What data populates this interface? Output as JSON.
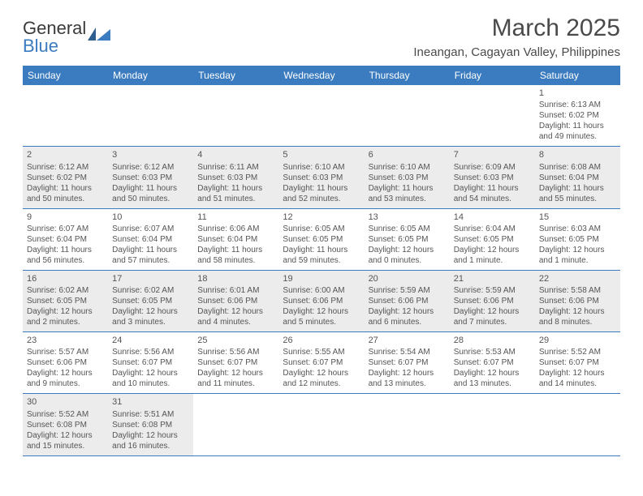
{
  "logo": {
    "part1": "General",
    "part2": "Blue"
  },
  "title": "March 2025",
  "location": "Ineangan, Cagayan Valley, Philippines",
  "colors": {
    "header_bg": "#3b7bbf",
    "header_text": "#ffffff",
    "shaded_bg": "#ececec",
    "text": "#555555",
    "rule": "#3b7bbf"
  },
  "typography": {
    "title_fontsize": 30,
    "location_fontsize": 15,
    "dayheader_fontsize": 12,
    "cell_fontsize": 10
  },
  "day_names": [
    "Sunday",
    "Monday",
    "Tuesday",
    "Wednesday",
    "Thursday",
    "Friday",
    "Saturday"
  ],
  "weeks": [
    [
      {
        "n": "",
        "shaded": false
      },
      {
        "n": "",
        "shaded": false
      },
      {
        "n": "",
        "shaded": false
      },
      {
        "n": "",
        "shaded": false
      },
      {
        "n": "",
        "shaded": false
      },
      {
        "n": "",
        "shaded": false
      },
      {
        "n": "1",
        "shaded": false,
        "sr": "Sunrise: 6:13 AM",
        "ss": "Sunset: 6:02 PM",
        "d1": "Daylight: 11 hours",
        "d2": "and 49 minutes."
      }
    ],
    [
      {
        "n": "2",
        "shaded": true,
        "sr": "Sunrise: 6:12 AM",
        "ss": "Sunset: 6:02 PM",
        "d1": "Daylight: 11 hours",
        "d2": "and 50 minutes."
      },
      {
        "n": "3",
        "shaded": true,
        "sr": "Sunrise: 6:12 AM",
        "ss": "Sunset: 6:03 PM",
        "d1": "Daylight: 11 hours",
        "d2": "and 50 minutes."
      },
      {
        "n": "4",
        "shaded": true,
        "sr": "Sunrise: 6:11 AM",
        "ss": "Sunset: 6:03 PM",
        "d1": "Daylight: 11 hours",
        "d2": "and 51 minutes."
      },
      {
        "n": "5",
        "shaded": true,
        "sr": "Sunrise: 6:10 AM",
        "ss": "Sunset: 6:03 PM",
        "d1": "Daylight: 11 hours",
        "d2": "and 52 minutes."
      },
      {
        "n": "6",
        "shaded": true,
        "sr": "Sunrise: 6:10 AM",
        "ss": "Sunset: 6:03 PM",
        "d1": "Daylight: 11 hours",
        "d2": "and 53 minutes."
      },
      {
        "n": "7",
        "shaded": true,
        "sr": "Sunrise: 6:09 AM",
        "ss": "Sunset: 6:03 PM",
        "d1": "Daylight: 11 hours",
        "d2": "and 54 minutes."
      },
      {
        "n": "8",
        "shaded": true,
        "sr": "Sunrise: 6:08 AM",
        "ss": "Sunset: 6:04 PM",
        "d1": "Daylight: 11 hours",
        "d2": "and 55 minutes."
      }
    ],
    [
      {
        "n": "9",
        "shaded": false,
        "sr": "Sunrise: 6:07 AM",
        "ss": "Sunset: 6:04 PM",
        "d1": "Daylight: 11 hours",
        "d2": "and 56 minutes."
      },
      {
        "n": "10",
        "shaded": false,
        "sr": "Sunrise: 6:07 AM",
        "ss": "Sunset: 6:04 PM",
        "d1": "Daylight: 11 hours",
        "d2": "and 57 minutes."
      },
      {
        "n": "11",
        "shaded": false,
        "sr": "Sunrise: 6:06 AM",
        "ss": "Sunset: 6:04 PM",
        "d1": "Daylight: 11 hours",
        "d2": "and 58 minutes."
      },
      {
        "n": "12",
        "shaded": false,
        "sr": "Sunrise: 6:05 AM",
        "ss": "Sunset: 6:05 PM",
        "d1": "Daylight: 11 hours",
        "d2": "and 59 minutes."
      },
      {
        "n": "13",
        "shaded": false,
        "sr": "Sunrise: 6:05 AM",
        "ss": "Sunset: 6:05 PM",
        "d1": "Daylight: 12 hours",
        "d2": "and 0 minutes."
      },
      {
        "n": "14",
        "shaded": false,
        "sr": "Sunrise: 6:04 AM",
        "ss": "Sunset: 6:05 PM",
        "d1": "Daylight: 12 hours",
        "d2": "and 1 minute."
      },
      {
        "n": "15",
        "shaded": false,
        "sr": "Sunrise: 6:03 AM",
        "ss": "Sunset: 6:05 PM",
        "d1": "Daylight: 12 hours",
        "d2": "and 1 minute."
      }
    ],
    [
      {
        "n": "16",
        "shaded": true,
        "sr": "Sunrise: 6:02 AM",
        "ss": "Sunset: 6:05 PM",
        "d1": "Daylight: 12 hours",
        "d2": "and 2 minutes."
      },
      {
        "n": "17",
        "shaded": true,
        "sr": "Sunrise: 6:02 AM",
        "ss": "Sunset: 6:05 PM",
        "d1": "Daylight: 12 hours",
        "d2": "and 3 minutes."
      },
      {
        "n": "18",
        "shaded": true,
        "sr": "Sunrise: 6:01 AM",
        "ss": "Sunset: 6:06 PM",
        "d1": "Daylight: 12 hours",
        "d2": "and 4 minutes."
      },
      {
        "n": "19",
        "shaded": true,
        "sr": "Sunrise: 6:00 AM",
        "ss": "Sunset: 6:06 PM",
        "d1": "Daylight: 12 hours",
        "d2": "and 5 minutes."
      },
      {
        "n": "20",
        "shaded": true,
        "sr": "Sunrise: 5:59 AM",
        "ss": "Sunset: 6:06 PM",
        "d1": "Daylight: 12 hours",
        "d2": "and 6 minutes."
      },
      {
        "n": "21",
        "shaded": true,
        "sr": "Sunrise: 5:59 AM",
        "ss": "Sunset: 6:06 PM",
        "d1": "Daylight: 12 hours",
        "d2": "and 7 minutes."
      },
      {
        "n": "22",
        "shaded": true,
        "sr": "Sunrise: 5:58 AM",
        "ss": "Sunset: 6:06 PM",
        "d1": "Daylight: 12 hours",
        "d2": "and 8 minutes."
      }
    ],
    [
      {
        "n": "23",
        "shaded": false,
        "sr": "Sunrise: 5:57 AM",
        "ss": "Sunset: 6:06 PM",
        "d1": "Daylight: 12 hours",
        "d2": "and 9 minutes."
      },
      {
        "n": "24",
        "shaded": false,
        "sr": "Sunrise: 5:56 AM",
        "ss": "Sunset: 6:07 PM",
        "d1": "Daylight: 12 hours",
        "d2": "and 10 minutes."
      },
      {
        "n": "25",
        "shaded": false,
        "sr": "Sunrise: 5:56 AM",
        "ss": "Sunset: 6:07 PM",
        "d1": "Daylight: 12 hours",
        "d2": "and 11 minutes."
      },
      {
        "n": "26",
        "shaded": false,
        "sr": "Sunrise: 5:55 AM",
        "ss": "Sunset: 6:07 PM",
        "d1": "Daylight: 12 hours",
        "d2": "and 12 minutes."
      },
      {
        "n": "27",
        "shaded": false,
        "sr": "Sunrise: 5:54 AM",
        "ss": "Sunset: 6:07 PM",
        "d1": "Daylight: 12 hours",
        "d2": "and 13 minutes."
      },
      {
        "n": "28",
        "shaded": false,
        "sr": "Sunrise: 5:53 AM",
        "ss": "Sunset: 6:07 PM",
        "d1": "Daylight: 12 hours",
        "d2": "and 13 minutes."
      },
      {
        "n": "29",
        "shaded": false,
        "sr": "Sunrise: 5:52 AM",
        "ss": "Sunset: 6:07 PM",
        "d1": "Daylight: 12 hours",
        "d2": "and 14 minutes."
      }
    ],
    [
      {
        "n": "30",
        "shaded": true,
        "sr": "Sunrise: 5:52 AM",
        "ss": "Sunset: 6:08 PM",
        "d1": "Daylight: 12 hours",
        "d2": "and 15 minutes."
      },
      {
        "n": "31",
        "shaded": true,
        "sr": "Sunrise: 5:51 AM",
        "ss": "Sunset: 6:08 PM",
        "d1": "Daylight: 12 hours",
        "d2": "and 16 minutes."
      },
      {
        "n": "",
        "shaded": false
      },
      {
        "n": "",
        "shaded": false
      },
      {
        "n": "",
        "shaded": false
      },
      {
        "n": "",
        "shaded": false
      },
      {
        "n": "",
        "shaded": false
      }
    ]
  ]
}
